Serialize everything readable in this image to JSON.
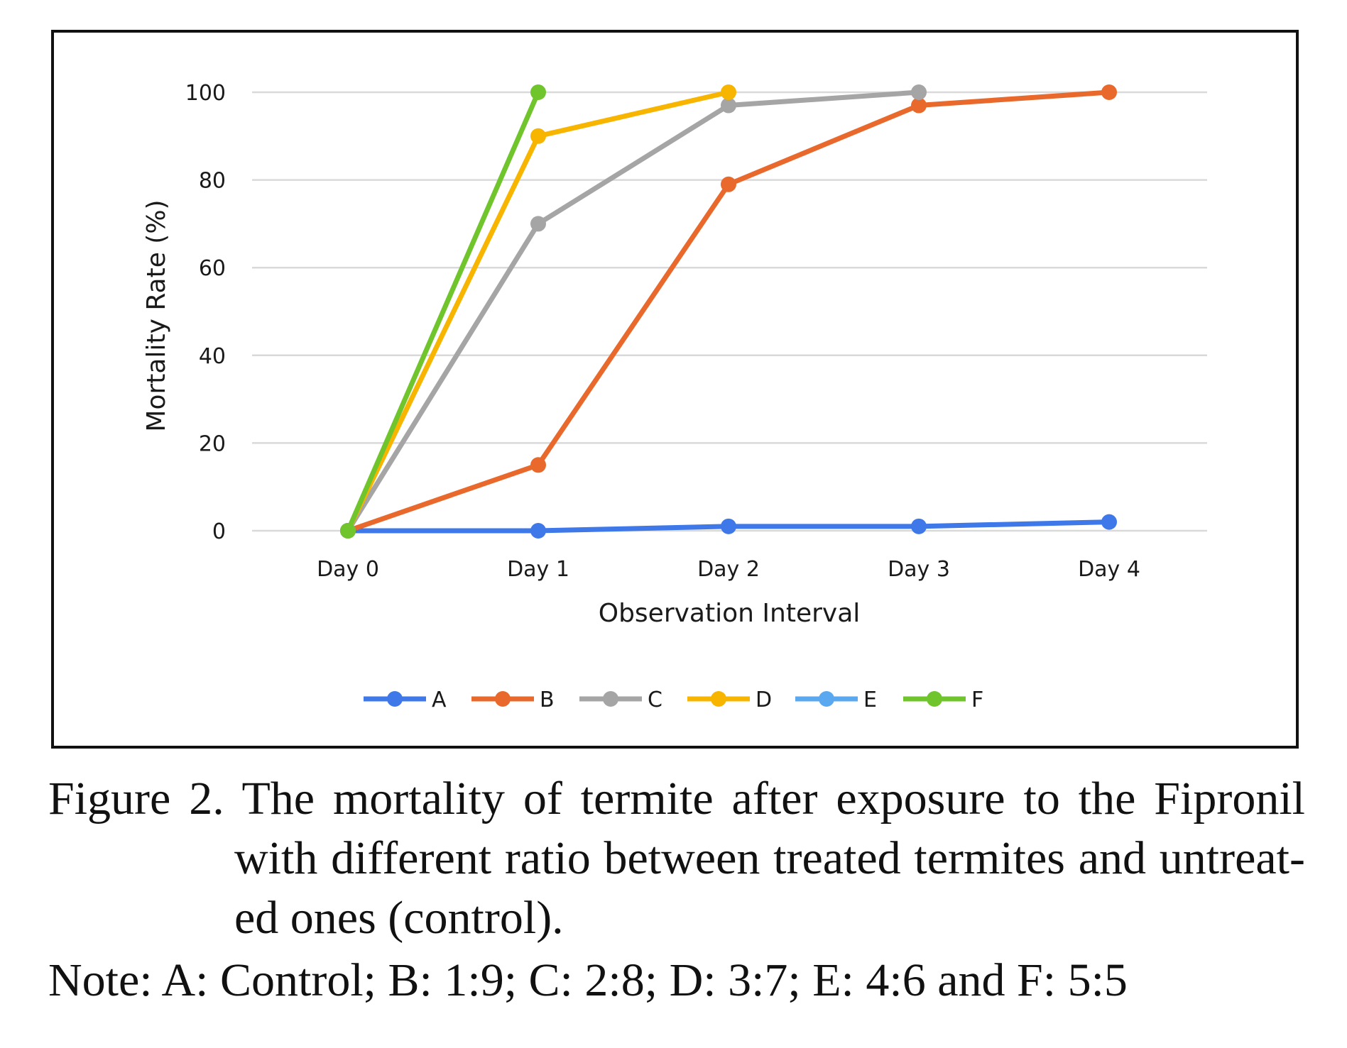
{
  "chart_data": {
    "type": "line",
    "title": "",
    "xlabel": "Observation Interval",
    "ylabel": "Mortality Rate (%)",
    "categories": [
      "Day 0",
      "Day 1",
      "Day 2",
      "Day 3",
      "Day 4"
    ],
    "yticks": [
      "0",
      "20",
      "40",
      "60",
      "80",
      "100"
    ],
    "ylim": [
      0,
      100
    ],
    "grid": true,
    "legend_position": "bottom",
    "series": [
      {
        "name": "A",
        "color": "#3F78E8",
        "values": [
          0,
          0,
          1,
          1,
          2
        ]
      },
      {
        "name": "B",
        "color": "#E9692C",
        "values": [
          0,
          15,
          79,
          97,
          100
        ]
      },
      {
        "name": "C",
        "color": "#A5A5A5",
        "values": [
          0,
          70,
          97,
          100,
          null
        ]
      },
      {
        "name": "D",
        "color": "#F7B500",
        "values": [
          0,
          90,
          100,
          null,
          null
        ]
      },
      {
        "name": "E",
        "color": "#5AA8F0",
        "values": [
          0,
          null,
          null,
          null,
          null
        ]
      },
      {
        "name": "F",
        "color": "#6FC52B",
        "values": [
          0,
          100,
          null,
          null,
          null
        ]
      }
    ]
  },
  "caption": {
    "line1": "Figure 2. The mortality of termite after exposure to the Fipronil",
    "line2": "with different ratio between treated termites and untreat-",
    "line3": "ed ones (control).",
    "note": "Note: A: Control; B: 1:9; C: 2:8; D: 3:7; E: 4:6 and F: 5:5"
  }
}
